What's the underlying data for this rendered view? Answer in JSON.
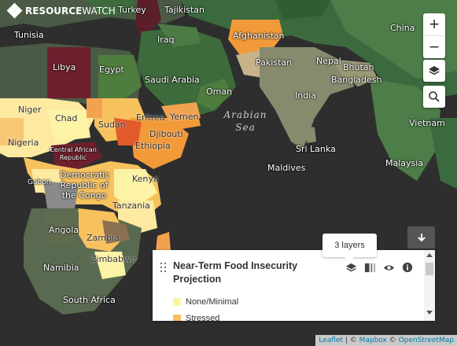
{
  "brand": {
    "name_bold": "RESOURCE",
    "name_thin": "WATCH"
  },
  "map": {
    "countries": [
      "Tajikistan",
      "Turkey",
      "China",
      "Tunisia",
      "Iraq",
      "Afghanistan",
      "Libya",
      "Egypt",
      "Pakistan",
      "Nepal",
      "Bhutan",
      "Saudi Arabia",
      "Bangladesh",
      "Oman",
      "India",
      "Niger",
      "Chad",
      "Sudan",
      "Eritrea",
      "Yemen",
      "Djibouti",
      "Vietnam",
      "Nigeria",
      "Ethiopia",
      "Sri Lanka",
      "Central African Republic",
      "Maldives",
      "Malaysia",
      "Gabon",
      "Kenya",
      "Democratic Republic of the Congo",
      "Tanzania",
      "Angola",
      "Zambia",
      "Zimbabwe",
      "Namibia",
      "South Africa"
    ],
    "seas": [
      "Arabian Sea"
    ]
  },
  "controls": {
    "zoom_in": "+",
    "zoom_out": "−",
    "layers_icon": "layers-icon",
    "search_icon": "search-icon",
    "collapse_icon": "arrow-down-icon"
  },
  "tooltip": {
    "text": "3 layers"
  },
  "legend": {
    "title": "Near-Term Food Insecurity Projection",
    "items": [
      {
        "label": "None/Minimal",
        "color": "#fdf3a6"
      },
      {
        "label": "Stressed",
        "color": "#f7c15e"
      }
    ],
    "tools": [
      "layers-icon",
      "opacity-icon",
      "eye-icon",
      "info-icon"
    ]
  },
  "attribution": {
    "leaflet": "Leaflet",
    "sep": " | © ",
    "mapbox": "Mapbox",
    "sep2": " © ",
    "osm": "OpenStreetMap"
  }
}
